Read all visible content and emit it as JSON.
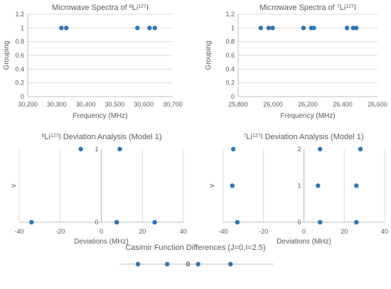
{
  "colors": {
    "marker": "#2e75b6",
    "axis": "#bfbfbf",
    "grid": "#d9d9d9",
    "text": "#595959"
  },
  "chart_data": [
    {
      "id": "li6-spectra",
      "type": "scatter",
      "title_parts": [
        {
          "text": "Microwave Spectra of "
        },
        {
          "text": "6",
          "sup": true
        },
        {
          "text": "Li"
        },
        {
          "text": "127",
          "sup": true
        },
        {
          "text": "I"
        }
      ],
      "xlabel": "Frequency (MHz)",
      "ylabel": "Grouping",
      "xlim": [
        30200,
        30700
      ],
      "ylim": [
        0,
        1.2
      ],
      "xticks": [
        30200,
        30300,
        30400,
        30500,
        30600,
        30700
      ],
      "xtick_labels": [
        "30,200",
        "30,300",
        "30,400",
        "30,500",
        "30,600",
        "30,700"
      ],
      "yticks": [
        0,
        0.2,
        0.4,
        0.6,
        0.8,
        1,
        1.2
      ],
      "ytick_labels": [
        "0",
        "0.2",
        "0.4",
        "0.6",
        "0.8",
        "1",
        "1.2"
      ],
      "grid": "horizontal",
      "series": [
        {
          "x": [
            30316,
            30333,
            30578,
            30620,
            30638
          ],
          "y": [
            1,
            1,
            1,
            1,
            1
          ]
        }
      ]
    },
    {
      "id": "li7-spectra",
      "type": "scatter",
      "title_parts": [
        {
          "text": "Microwave Spectra of "
        },
        {
          "text": "7",
          "sup": true
        },
        {
          "text": "Li"
        },
        {
          "text": "127",
          "sup": true
        },
        {
          "text": "I"
        }
      ],
      "xlabel": "Frequency (MHz)",
      "ylabel": "Grouping",
      "xlim": [
        25800,
        26600
      ],
      "ylim": [
        0,
        1.2
      ],
      "xticks": [
        25800,
        26000,
        26200,
        26400,
        26600
      ],
      "xtick_labels": [
        "25,800",
        "26,000",
        "26,200",
        "26,400",
        "26,600"
      ],
      "yticks": [
        0,
        0.2,
        0.4,
        0.6,
        0.8,
        1,
        1.2
      ],
      "ytick_labels": [
        "0",
        "0.2",
        "0.4",
        "0.6",
        "0.8",
        "1",
        "1.2"
      ],
      "grid": "horizontal",
      "series": [
        {
          "x": [
            25930,
            25975,
            25998,
            26175,
            26220,
            26235,
            26425,
            26460,
            26478
          ],
          "y": [
            1,
            1,
            1,
            1,
            1,
            1,
            1,
            1,
            1
          ]
        }
      ]
    },
    {
      "id": "li6-deviation",
      "type": "scatter",
      "title_parts": [
        {
          "text": "6",
          "sup": true
        },
        {
          "text": "Li"
        },
        {
          "text": "127",
          "sup": true
        },
        {
          "text": "I  Deviation Analysis (Model 1)"
        }
      ],
      "xlabel": "Deviations (MHz)",
      "ylabel": "v",
      "xlim": [
        -40,
        40
      ],
      "ylim": [
        0,
        1
      ],
      "xticks": [
        -40,
        -20,
        0,
        20,
        40
      ],
      "xtick_labels": [
        "-40",
        "-20",
        "0",
        "20",
        "40"
      ],
      "yticks": [
        0,
        1
      ],
      "ytick_labels": [
        "0",
        "1"
      ],
      "grid": "vertical",
      "series": [
        {
          "x": [
            -34,
            -10,
            9,
            7.5,
            26
          ],
          "y": [
            0,
            1,
            1,
            0,
            0
          ]
        }
      ]
    },
    {
      "id": "li7-deviation",
      "type": "scatter",
      "title_parts": [
        {
          "text": "7",
          "sup": true
        },
        {
          "text": "Li"
        },
        {
          "text": "127",
          "sup": true
        },
        {
          "text": "I  Deviation Analysis (Model 1)"
        }
      ],
      "xlabel": "Deviations (MHz)",
      "ylabel": "v",
      "xlim": [
        -40,
        40
      ],
      "ylim": [
        0,
        2
      ],
      "xticks": [
        -40,
        -20,
        0,
        20,
        40
      ],
      "xtick_labels": [
        "-40",
        "-20",
        "0",
        "20",
        "40"
      ],
      "yticks": [
        0,
        1,
        2
      ],
      "ytick_labels": [
        "0",
        "1",
        "2"
      ],
      "grid": "vertical",
      "series": [
        {
          "x": [
            -35,
            8,
            28,
            -35.5,
            7,
            26,
            -33,
            8,
            26
          ],
          "y": [
            2,
            2,
            2,
            1,
            1,
            1,
            0,
            0,
            0
          ]
        }
      ]
    },
    {
      "id": "casimir-differences",
      "type": "scatter",
      "title_parts": [
        {
          "text": "Casimir Function Differences (J=0,I=2.5)"
        }
      ],
      "xlim": [
        -1.5,
        3.5
      ],
      "y_value_labels": [
        "0",
        "0"
      ],
      "series": [
        {
          "x": [
            -0.9,
            0.05,
            1.05,
            2.1
          ],
          "y": [
            0,
            0,
            0,
            0
          ]
        }
      ]
    }
  ]
}
